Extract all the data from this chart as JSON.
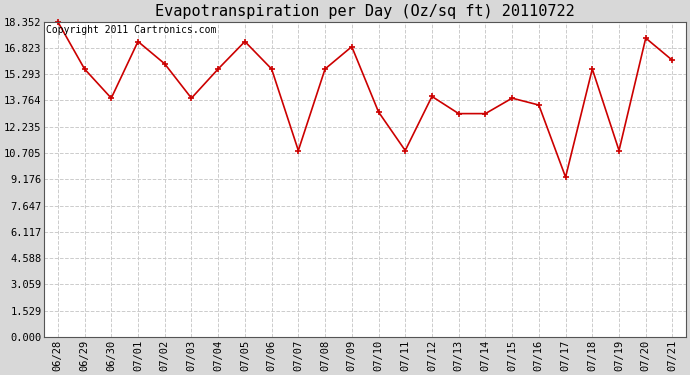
{
  "title": "Evapotranspiration per Day (Oz/sq ft) 20110722",
  "copyright_text": "Copyright 2011 Cartronics.com",
  "x_labels": [
    "06/28",
    "06/29",
    "06/30",
    "07/01",
    "07/02",
    "07/03",
    "07/04",
    "07/05",
    "07/06",
    "07/07",
    "07/08",
    "07/09",
    "07/10",
    "07/11",
    "07/12",
    "07/13",
    "07/14",
    "07/15",
    "07/16",
    "07/17",
    "07/18",
    "07/19",
    "07/20",
    "07/21"
  ],
  "y_values": [
    18.352,
    15.6,
    13.9,
    17.2,
    15.9,
    13.9,
    15.6,
    17.2,
    15.6,
    10.85,
    15.6,
    16.9,
    13.1,
    10.85,
    14.0,
    13.0,
    13.0,
    13.9,
    13.5,
    9.3,
    15.6,
    10.85,
    17.4,
    16.1
  ],
  "ytick_values": [
    0.0,
    1.529,
    3.059,
    4.588,
    6.117,
    7.647,
    9.176,
    10.705,
    12.235,
    13.764,
    15.293,
    16.823,
    18.352
  ],
  "ytick_labels": [
    "0.000",
    "1.529",
    "3.059",
    "4.588",
    "6.117",
    "7.647",
    "9.176",
    "10.705",
    "12.235",
    "13.764",
    "15.293",
    "16.823",
    "18.352"
  ],
  "line_color": "#cc0000",
  "marker": "+",
  "marker_size": 5,
  "marker_edge_width": 1.2,
  "line_width": 1.2,
  "fig_bg_color": "#d8d8d8",
  "plot_bg_color": "#ffffff",
  "grid_color": "#cccccc",
  "grid_linestyle": "--",
  "title_fontsize": 11,
  "copyright_fontsize": 7,
  "tick_fontsize": 7.5,
  "ylim": [
    0.0,
    18.352
  ],
  "figsize": [
    6.9,
    3.75
  ],
  "dpi": 100
}
